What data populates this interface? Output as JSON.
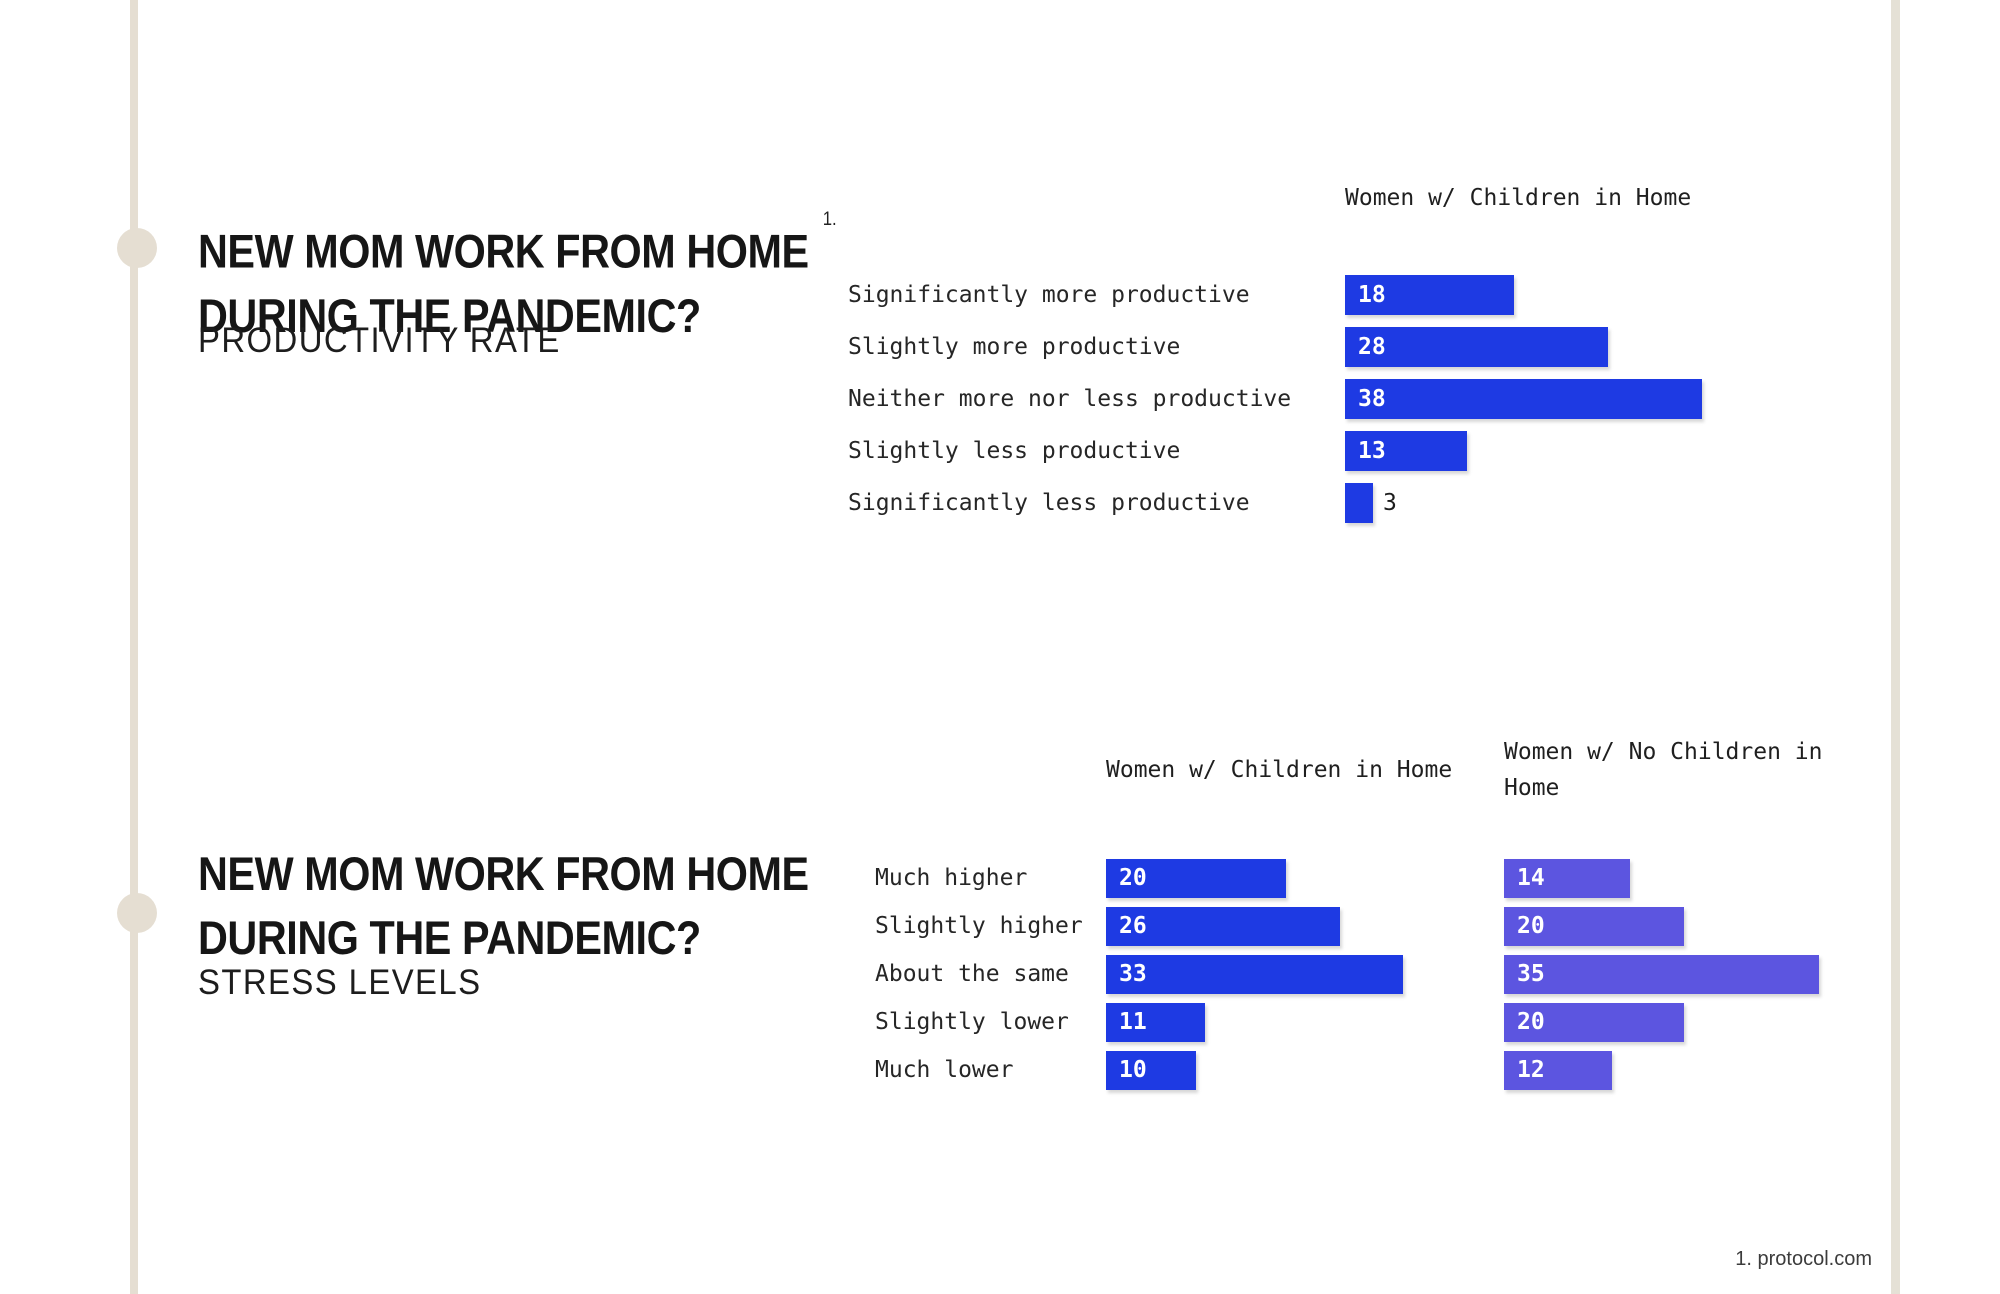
{
  "sections": [
    {
      "title_line1": "NEW MOM WORK FROM HOME",
      "title_line2": "DURING THE PANDEMIC?",
      "superscript": "1.",
      "subtitle": "PRODUCTIVITY RATE"
    },
    {
      "title_line1": "NEW MOM WORK FROM HOME",
      "title_line2": "DURING THE PANDEMIC?",
      "subtitle": "STRESS LEVELS"
    }
  ],
  "footer": {
    "footnote": "1. protocol.com"
  },
  "colors": {
    "primary_blue": "#1E3AE3",
    "secondary_purple": "#5C55E0",
    "accent_beige": "#E5DED2"
  },
  "chart_data": [
    {
      "type": "bar",
      "orientation": "horizontal",
      "title": "PRODUCTIVITY RATE",
      "categories": [
        "Significantly more productive",
        "Slightly more productive",
        "Neither more nor less productive",
        "Slightly less productive",
        "Significantly less productive"
      ],
      "series": [
        {
          "name": "Women w/ Children in Home",
          "color": "#1E3AE3",
          "values": [
            18,
            28,
            38,
            13,
            3
          ]
        }
      ],
      "xlim": [
        0,
        40
      ],
      "axes": "hidden",
      "grid": false,
      "value_labels": "inside-start",
      "legend": "column-header"
    },
    {
      "type": "bar",
      "orientation": "horizontal",
      "title": "STRESS LEVELS",
      "categories": [
        "Much higher",
        "Slightly higher",
        "About the same",
        "Slightly lower",
        "Much lower"
      ],
      "series": [
        {
          "name": "Women w/ Children in Home",
          "color": "#1E3AE3",
          "values": [
            20,
            26,
            33,
            11,
            10
          ]
        },
        {
          "name": "Women w/ No Children in Home",
          "color": "#5C55E0",
          "values": [
            14,
            20,
            35,
            20,
            12
          ]
        }
      ],
      "xlim": [
        0,
        40
      ],
      "axes": "hidden",
      "grid": false,
      "value_labels": "inside-start",
      "legend": "column-header"
    }
  ]
}
